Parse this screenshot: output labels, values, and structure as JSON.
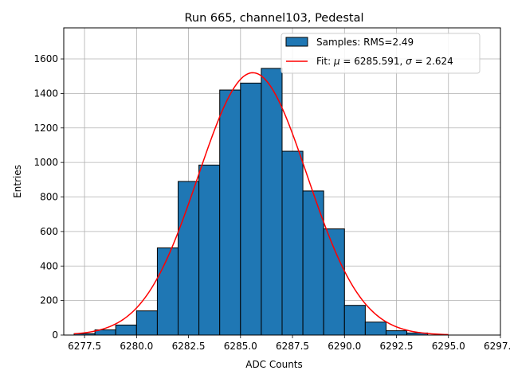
{
  "chart_data": {
    "type": "bar",
    "title": "Run 665, channel103, Pedestal",
    "xlabel": "ADC Counts",
    "ylabel": "Entries",
    "xlim": [
      6276.5,
      6297.5
    ],
    "ylim": [
      0,
      1780
    ],
    "xticks": [
      6277.5,
      6280.0,
      6282.5,
      6285.0,
      6287.5,
      6290.0,
      6292.5,
      6295.0,
      6297.5
    ],
    "xtick_labels": [
      "6277.5",
      "6280.0",
      "6282.5",
      "6285.0",
      "6287.5",
      "6290.0",
      "6292.5",
      "6295.0",
      "6297.5"
    ],
    "yticks": [
      0,
      200,
      400,
      600,
      800,
      1000,
      1200,
      1400,
      1600
    ],
    "ytick_labels": [
      "0",
      "200",
      "400",
      "600",
      "800",
      "1000",
      "1200",
      "1400",
      "1600"
    ],
    "grid": true,
    "legend_position": "top-right",
    "bin_width": 1,
    "series": [
      {
        "name": "Samples: RMS=2.49",
        "kind": "histogram",
        "color": "#1f77b4",
        "edge_color": "#000000",
        "bin_starts": [
          6277,
          6278,
          6279,
          6280,
          6281,
          6282,
          6283,
          6284,
          6285,
          6286,
          6287,
          6288,
          6289,
          6290,
          6291,
          6292,
          6293
        ],
        "values": [
          8,
          30,
          58,
          140,
          505,
          890,
          985,
          1420,
          1460,
          1545,
          1065,
          835,
          615,
          172,
          75,
          25,
          12
        ]
      },
      {
        "name": "Fit: μ = 6285.591, σ = 2.624",
        "legend_parts": [
          "Fit: ",
          "μ",
          " = 6285.591, ",
          "σ",
          " = 2.624"
        ],
        "kind": "gaussian_fit",
        "color": "#ff0000",
        "mu": 6285.591,
        "sigma": 2.624,
        "amplitude": 1520,
        "x_range": [
          6277,
          6295
        ]
      }
    ]
  }
}
